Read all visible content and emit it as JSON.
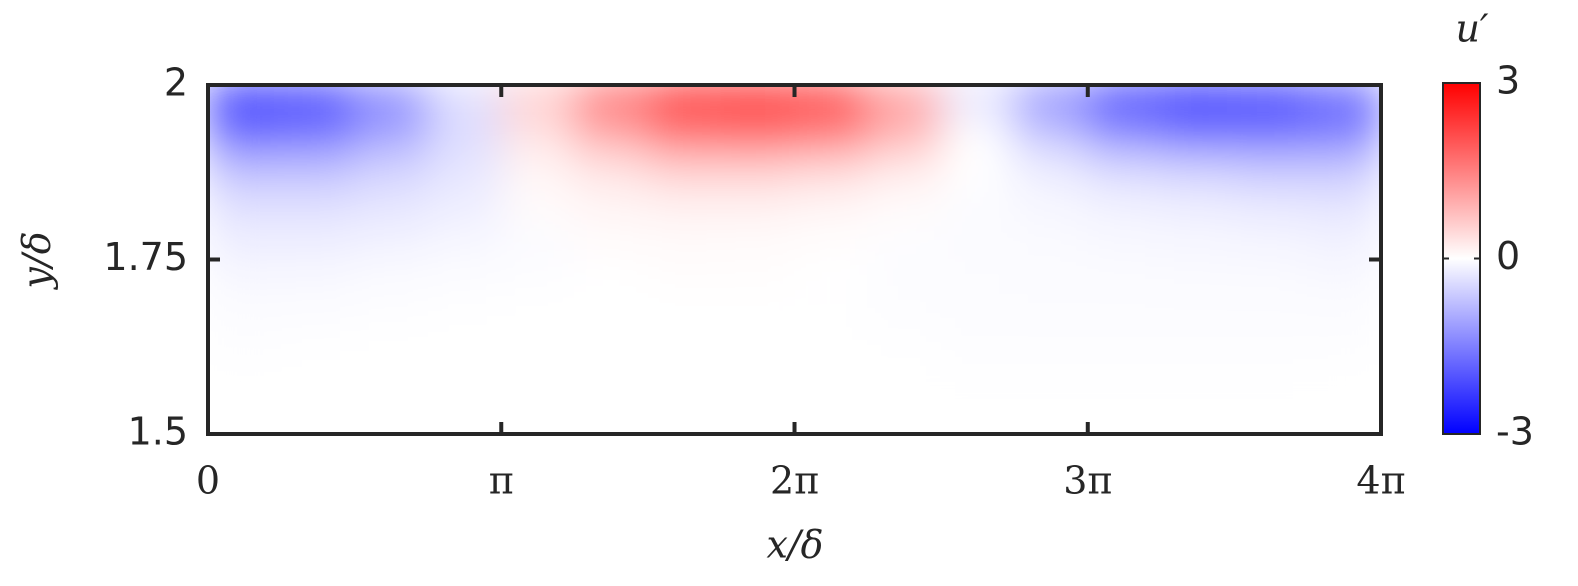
{
  "chart_data": {
    "type": "heatmap",
    "xlabel": "x/δ",
    "ylabel": "y/δ",
    "xlim": [
      0,
      12.566
    ],
    "ylim": [
      1.5,
      2
    ],
    "xticks": [
      {
        "value": 0,
        "label": "0"
      },
      {
        "value": 3.1416,
        "label": "π"
      },
      {
        "value": 6.2832,
        "label": "2π"
      },
      {
        "value": 9.4248,
        "label": "3π"
      },
      {
        "value": 12.566,
        "label": "4π"
      }
    ],
    "yticks": [
      1.5,
      1.75,
      2
    ],
    "x": [
      0.39,
      1.18,
      1.96,
      2.75,
      3.53,
      4.32,
      5.11,
      5.89,
      6.68,
      7.46,
      8.25,
      9.03,
      9.82,
      10.6,
      11.39,
      12.17
    ],
    "y": [
      1.975,
      1.925,
      1.875,
      1.825,
      1.775,
      1.725,
      1.675,
      1.625,
      1.575,
      1.525
    ],
    "z": [
      [
        -2.6,
        -2.4,
        -1.5,
        -0.4,
        0.6,
        1.8,
        2.8,
        3.0,
        2.5,
        1.2,
        -0.3,
        -1.4,
        -2.5,
        -3.0,
        -2.6,
        -2.0
      ],
      [
        -1.6,
        -1.5,
        -1.0,
        -0.4,
        0.3,
        0.9,
        1.5,
        1.6,
        1.4,
        0.8,
        0.0,
        -0.6,
        -1.2,
        -1.5,
        -1.5,
        -1.4
      ],
      [
        -0.7,
        -0.7,
        -0.5,
        -0.3,
        0.1,
        0.3,
        0.5,
        0.5,
        0.4,
        0.2,
        0.0,
        -0.2,
        -0.4,
        -0.5,
        -0.6,
        -0.6
      ],
      [
        -0.35,
        -0.35,
        -0.3,
        -0.2,
        0.05,
        0.12,
        0.15,
        0.15,
        0.1,
        0.05,
        -0.05,
        -0.1,
        -0.15,
        -0.2,
        -0.25,
        -0.3
      ],
      [
        -0.2,
        -0.2,
        -0.15,
        -0.1,
        -0.05,
        0.05,
        0.06,
        0.05,
        0.02,
        -0.02,
        -0.05,
        -0.06,
        -0.08,
        -0.1,
        -0.12,
        -0.15
      ],
      [
        -0.1,
        -0.08,
        -0.05,
        -0.03,
        -0.02,
        0,
        0.02,
        0.02,
        0,
        -0.03,
        -0.04,
        -0.05,
        -0.05,
        -0.06,
        -0.06,
        -0.08
      ],
      [
        -0.04,
        -0.03,
        -0.02,
        -0.01,
        0,
        0,
        0,
        0,
        -0.01,
        -0.02,
        -0.03,
        -0.03,
        -0.03,
        -0.03,
        -0.03,
        -0.04
      ],
      [
        -0.02,
        -0.01,
        0,
        0,
        0,
        0,
        0,
        0,
        0,
        -0.01,
        -0.02,
        -0.02,
        -0.02,
        -0.02,
        -0.02,
        -0.02
      ],
      [
        0,
        0,
        0,
        0,
        0,
        0,
        0,
        0,
        0,
        0,
        -0.01,
        -0.01,
        -0.01,
        -0.01,
        -0.01,
        0
      ],
      [
        0,
        0,
        0,
        0,
        0,
        0,
        0,
        0,
        0,
        0,
        0,
        0,
        0,
        0,
        0,
        0
      ]
    ],
    "colorbar": {
      "title": "u′",
      "lim": [
        -3,
        3
      ],
      "ticks": [
        -3,
        0,
        3
      ],
      "colormap": [
        "#0000ff",
        "#ffffff",
        "#ff0000"
      ]
    }
  }
}
